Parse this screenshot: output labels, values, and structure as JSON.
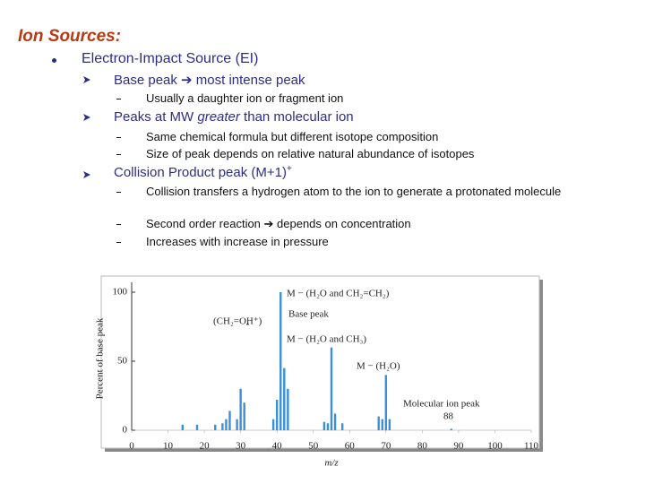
{
  "title": "Ion Sources:",
  "bullet": {
    "text": "Electron-Impact Source (EI)",
    "items": [
      {
        "text": "Base peak ➔ most intense peak",
        "sub": [
          "Usually a daughter ion or fragment ion"
        ]
      },
      {
        "text_parts": [
          "Peaks at MW ",
          "greater",
          " than molecular ion"
        ],
        "sub": [
          "Same chemical formula but different isotope composition",
          "Size of peak depends on relative natural abundance of isotopes"
        ]
      },
      {
        "text": "Collision Product peak (M+1)",
        "superscript": "+",
        "sub": [
          "Collision transfers a hydrogen atom to the ion to generate a protonated molecule",
          "Second order reaction ➔ depends on concentration",
          "Increases with increase in pressure"
        ]
      }
    ]
  },
  "figure": {
    "y_label": "Percent of base peak",
    "x_label": "m/z",
    "xlim": [
      0,
      110
    ],
    "ylim": [
      0,
      100
    ],
    "xticks": [
      0,
      10,
      20,
      30,
      40,
      50,
      60,
      70,
      80,
      90,
      100,
      110
    ],
    "yticks": [
      0,
      50,
      100
    ],
    "color": "#3b8fd8",
    "peaks": {
      "x": [
        14,
        18,
        23,
        25,
        26,
        27,
        29,
        30,
        31,
        39,
        40,
        41,
        42,
        43,
        53,
        54,
        55,
        56,
        58,
        68,
        69,
        70,
        71,
        88
      ],
      "values": [
        4,
        4,
        4,
        5,
        8,
        14,
        8,
        30,
        20,
        8,
        22,
        100,
        45,
        30,
        6,
        5,
        60,
        12,
        5,
        10,
        8,
        40,
        8,
        1
      ]
    },
    "annotations": [
      "M − (H₂O and CH₂=CH₂)",
      "Base peak",
      "(CH₂=OH⁺)",
      "M − (H₂O and CH₃)",
      "M − (H₂O)",
      "Molecular ion peak",
      "88"
    ]
  }
}
